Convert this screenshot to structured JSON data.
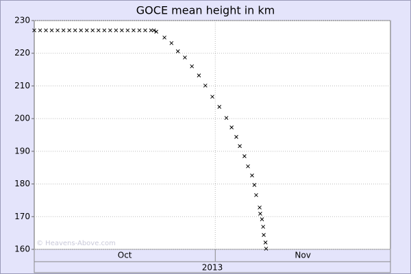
{
  "chart_data": {
    "type": "scatter",
    "title": "GOCE mean height in km",
    "watermark": "© Heavens-Above.com",
    "color": "#000000",
    "x": [
      0,
      1,
      2,
      3,
      4,
      5,
      6,
      7,
      8,
      9,
      10,
      11,
      12,
      13,
      14,
      15,
      16,
      17,
      18,
      19,
      20,
      20.5,
      20.9,
      22.3,
      23.5,
      24.6,
      25.8,
      27.0,
      28.2,
      29.3,
      30.5,
      31.7,
      32.9,
      33.8,
      34.6,
      35.2,
      36.0,
      36.6,
      37.3,
      37.7,
      38.0,
      38.6,
      38.7,
      39.0,
      39.2,
      39.3,
      39.6,
      39.7
    ],
    "values": [
      227,
      227,
      227,
      227,
      227,
      227,
      227,
      227,
      227,
      227,
      227,
      227,
      227,
      227,
      227,
      227,
      227,
      227,
      227,
      227,
      227,
      227,
      226.6,
      224.8,
      223.1,
      220.6,
      218.7,
      216,
      213.2,
      210.1,
      206.7,
      203.6,
      200.2,
      197.3,
      194.4,
      191.6,
      188.5,
      185.4,
      182.6,
      179.7,
      176.6,
      172.8,
      170.9,
      169.2,
      166.9,
      164.4,
      162.1,
      160.2
    ],
    "xlim": [
      0,
      61
    ],
    "xgrid": [
      31
    ],
    "xbands": [
      {
        "label": "Oct",
        "range": [
          0,
          31
        ]
      },
      {
        "label": "Nov",
        "range": [
          31,
          61
        ]
      }
    ],
    "xyear": {
      "label": "2013",
      "range": [
        0,
        61
      ]
    },
    "ylim": [
      160,
      230
    ],
    "yticks": [
      160,
      170,
      180,
      190,
      200,
      210,
      220,
      230
    ],
    "grid": true
  }
}
